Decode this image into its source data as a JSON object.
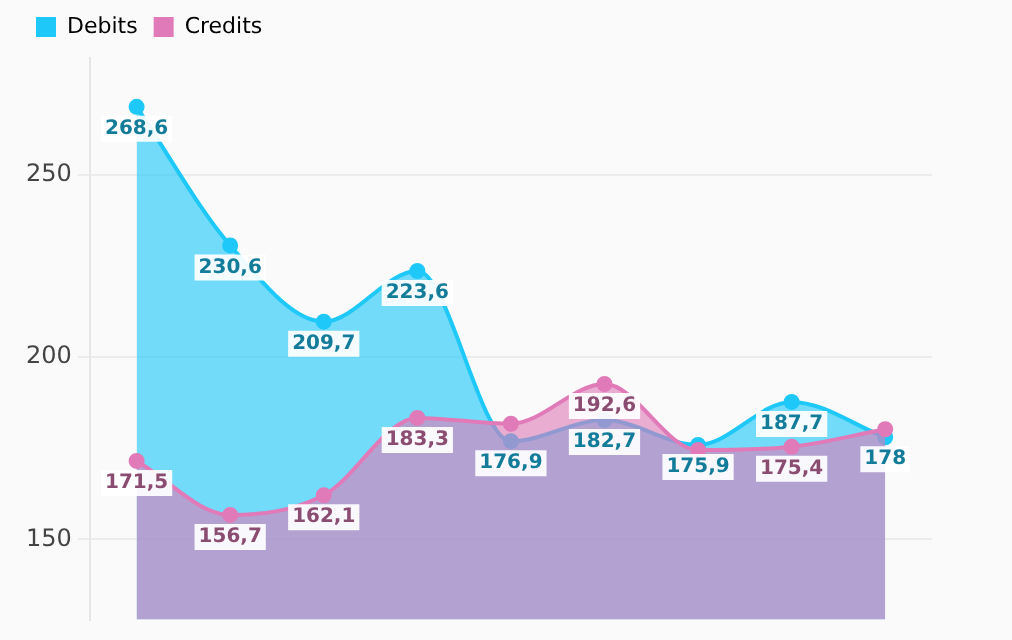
{
  "chart_data": {
    "type": "area",
    "categories": [
      null,
      null,
      null,
      null,
      null,
      null,
      null,
      null,
      null
    ],
    "series": [
      {
        "name": "Debits",
        "color": "#1ec8f8",
        "values": [
          268.6,
          230.6,
          209.7,
          223.6,
          176.9,
          182.7,
          175.9,
          187.7,
          178
        ],
        "value_labels": [
          "268,6",
          "230,6",
          "209,7",
          "223,6",
          "176,9",
          "182,7",
          "175,9",
          "187,7",
          "178"
        ]
      },
      {
        "name": "Credits",
        "color": "#e07ab8",
        "values": [
          171.5,
          156.7,
          162.1,
          183.3,
          181.7,
          192.6,
          174.5,
          175.4,
          180.2
        ],
        "value_labels": [
          "171,5",
          "156,7",
          "162,1",
          "183,3",
          null,
          "192,6",
          null,
          "175,4",
          null
        ]
      }
    ],
    "ylim": [
      128,
      282
    ],
    "yticks": [
      150,
      200,
      250
    ],
    "grid": "y",
    "legend": "top left",
    "marker": "circle",
    "tick_labels": "y"
  }
}
